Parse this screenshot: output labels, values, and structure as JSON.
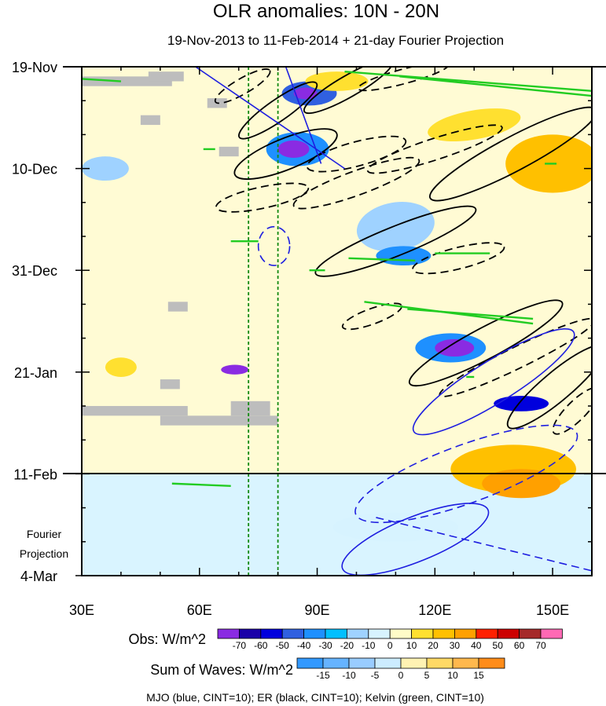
{
  "chart_data": {
    "type": "heatmap",
    "title": "OLR anomalies: 10N - 20N",
    "subtitle": "19-Nov-2013 to 11-Feb-2014 + 21-day Fourier Projection",
    "x_axis": {
      "range": [
        30,
        160
      ],
      "ticks": [
        30,
        60,
        90,
        120,
        150
      ],
      "tick_labels": [
        "30E",
        "60E",
        "90E",
        "120E",
        "150E"
      ]
    },
    "y_axis": {
      "tick_labels": [
        "19-Nov",
        "10-Dec",
        "31-Dec",
        "21-Jan",
        "11-Feb",
        "4-Mar"
      ],
      "day_offsets": [
        0,
        21,
        42,
        63,
        84,
        105
      ],
      "range_days": [
        0,
        105
      ],
      "projection_label_line1": "Fourier",
      "projection_label_line2": "Projection",
      "observation_end_label": "11-Feb"
    },
    "reference_longitudes": [
      72.5,
      80
    ],
    "obs_colorbar": {
      "title": "Obs: W/m^2",
      "labels": [
        "-70",
        "-60",
        "-50",
        "-40",
        "-30",
        "-20",
        "-10",
        "0",
        "10",
        "20",
        "30",
        "40",
        "50",
        "60",
        "70"
      ],
      "colors": [
        "#8a2be2",
        "#1a00a8",
        "#0000dd",
        "#3060e0",
        "#1e90ff",
        "#00bfff",
        "#9fd2ff",
        "#d7f3ff",
        "#fffcc8",
        "#ffe030",
        "#ffc000",
        "#ffa000",
        "#ff2000",
        "#cc0000",
        "#a52a2a",
        "#ff69b4"
      ]
    },
    "waves_colorbar": {
      "title": "Sum of Waves: W/m^2",
      "labels": [
        "-15",
        "-10",
        "-5",
        "0",
        "5",
        "10",
        "15"
      ],
      "colors": [
        "#3399ff",
        "#66b3ff",
        "#99ccff",
        "#ccecff",
        "#fff2b3",
        "#ffd966",
        "#ffb84d",
        "#ff8c1a"
      ]
    },
    "footnote": "MJO (blue, CINT=10); ER (black, CINT=10); Kelvin (green, CINT=10)",
    "contour_colors": {
      "mjo": "#1e1ee0",
      "er": "#000000",
      "kelvin": "#22cc22"
    },
    "anomaly_blobs": [
      {
        "lon": 88,
        "day": 5.5,
        "rx": 7,
        "ry": 2.5,
        "rot": 0,
        "color": "#3060e0"
      },
      {
        "lon": 87,
        "day": 5.5,
        "rx": 3,
        "ry": 1.2,
        "rot": 0,
        "color": "#8a2be2"
      },
      {
        "lon": 85,
        "day": 17,
        "rx": 8,
        "ry": 3.5,
        "rot": 0,
        "color": "#1e90ff"
      },
      {
        "lon": 84,
        "day": 17,
        "rx": 4,
        "ry": 1.8,
        "rot": 0,
        "color": "#8a2be2"
      },
      {
        "lon": 110,
        "day": 33,
        "rx": 10,
        "ry": 5,
        "rot": -10,
        "color": "#9fd2ff"
      },
      {
        "lon": 112,
        "day": 39,
        "rx": 7,
        "ry": 2,
        "rot": 0,
        "color": "#1e90ff"
      },
      {
        "lon": 124,
        "day": 58,
        "rx": 9,
        "ry": 3,
        "rot": 0,
        "color": "#1e90ff"
      },
      {
        "lon": 125,
        "day": 58,
        "rx": 5,
        "ry": 1.8,
        "rot": 0,
        "color": "#8a2be2"
      },
      {
        "lon": 142,
        "day": 69.5,
        "rx": 7,
        "ry": 1.6,
        "rot": 0,
        "color": "#0000dd"
      },
      {
        "lon": 69,
        "day": 62.5,
        "rx": 3.5,
        "ry": 1,
        "rot": 0,
        "color": "#8a2be2"
      },
      {
        "lon": 130,
        "day": 12,
        "rx": 12,
        "ry": 3,
        "rot": -10,
        "color": "#ffe030"
      },
      {
        "lon": 150,
        "day": 20,
        "rx": 12,
        "ry": 6,
        "rot": 0,
        "color": "#ffc000"
      },
      {
        "lon": 140,
        "day": 83,
        "rx": 16,
        "ry": 5,
        "rot": 0,
        "color": "#ffc000"
      },
      {
        "lon": 142,
        "day": 86,
        "rx": 10,
        "ry": 3,
        "rot": 0,
        "color": "#ffa000"
      },
      {
        "lon": 95,
        "day": 3,
        "rx": 8,
        "ry": 2,
        "rot": 0,
        "color": "#ffe030"
      },
      {
        "lon": 40,
        "day": 62,
        "rx": 4,
        "ry": 2,
        "rot": 0,
        "color": "#ffe030"
      },
      {
        "lon": 36,
        "day": 21,
        "rx": 6,
        "ry": 2.5,
        "rot": 0,
        "color": "#9fd2ff"
      },
      {
        "lon": 110,
        "day": 95,
        "rx": 16,
        "ry": 3,
        "rot": 0,
        "color": "#d7f3ff"
      }
    ],
    "missing_boxes": [
      {
        "lon0": 30,
        "lon1": 53,
        "day0": 2,
        "day1": 4
      },
      {
        "lon0": 47,
        "lon1": 56,
        "day0": 1,
        "day1": 3
      },
      {
        "lon0": 62,
        "lon1": 67,
        "day0": 6.5,
        "day1": 8.5
      },
      {
        "lon0": 45,
        "lon1": 50,
        "day0": 10,
        "day1": 12
      },
      {
        "lon0": 65,
        "lon1": 70,
        "day0": 16.5,
        "day1": 18.5
      },
      {
        "lon0": 52,
        "lon1": 57,
        "day0": 48.5,
        "day1": 50.5
      },
      {
        "lon0": 50,
        "lon1": 55,
        "day0": 64.5,
        "day1": 66.5
      },
      {
        "lon0": 30,
        "lon1": 57,
        "day0": 70,
        "day1": 72
      },
      {
        "lon0": 50,
        "lon1": 80,
        "day0": 72,
        "day1": 74
      },
      {
        "lon0": 68,
        "lon1": 78,
        "day0": 69,
        "day1": 72
      }
    ],
    "er_contours": [
      {
        "lon": 80,
        "day": 9,
        "rx": 12,
        "ry": 2.2,
        "rot": -35,
        "dash": false
      },
      {
        "lon": 82,
        "day": 18,
        "rx": 14,
        "ry": 3.2,
        "rot": -22,
        "dash": false
      },
      {
        "lon": 98,
        "day": 4,
        "rx": 13,
        "ry": 2.2,
        "rot": -30,
        "dash": false
      },
      {
        "lon": 100,
        "day": 18,
        "rx": 13,
        "ry": 2.5,
        "rot": -15,
        "dash": true
      },
      {
        "lon": 100,
        "day": 24,
        "rx": 17,
        "ry": 2.5,
        "rot": -20,
        "dash": true
      },
      {
        "lon": 120,
        "day": 17,
        "rx": 18,
        "ry": 2.2,
        "rot": -18,
        "dash": true
      },
      {
        "lon": 76,
        "day": 27,
        "rx": 12,
        "ry": 2.2,
        "rot": -12,
        "dash": true
      },
      {
        "lon": 110,
        "day": 36,
        "rx": 22,
        "ry": 3,
        "rot": -22,
        "dash": false
      },
      {
        "lon": 140,
        "day": 18,
        "rx": 24,
        "ry": 3.5,
        "rot": -28,
        "dash": false
      },
      {
        "lon": 126,
        "day": 39.5,
        "rx": 12,
        "ry": 2.2,
        "rot": -14,
        "dash": true
      },
      {
        "lon": 133,
        "day": 57,
        "rx": 22,
        "ry": 3.2,
        "rot": -28,
        "dash": false
      },
      {
        "lon": 141,
        "day": 60,
        "rx": 22,
        "ry": 2.2,
        "rot": -26,
        "dash": true
      },
      {
        "lon": 151,
        "day": 66,
        "rx": 16,
        "ry": 3,
        "rot": -40,
        "dash": false
      },
      {
        "lon": 156,
        "day": 71,
        "rx": 8,
        "ry": 2,
        "rot": -45,
        "dash": true
      },
      {
        "lon": 104,
        "day": 51.5,
        "rx": 8,
        "ry": 1.6,
        "rot": -20,
        "dash": true
      },
      {
        "lon": 112,
        "day": 2,
        "rx": 12,
        "ry": 1.5,
        "rot": -15,
        "dash": true
      },
      {
        "lon": 71,
        "day": 4,
        "rx": 8,
        "ry": 1.6,
        "rot": -30,
        "dash": true
      }
    ],
    "mjo_contours": [
      {
        "lon": 135,
        "day": 65,
        "rx": 24,
        "ry": 4.3,
        "rot": -32,
        "dash": false
      },
      {
        "lon": 128,
        "day": 84,
        "rx": 30,
        "ry": 6,
        "rot": -20,
        "dash": true
      },
      {
        "lon": 115,
        "day": 97.5,
        "rx": 20,
        "ry": 4.6,
        "rot": -22,
        "dash": false
      },
      {
        "lon": 79,
        "day": 37,
        "rx": 4,
        "ry": 4,
        "rot": 0,
        "dash": true
      }
    ],
    "mjo_lines": [
      {
        "lon0": 59,
        "day0": 0,
        "lon1": 97,
        "day1": 21,
        "dash": false
      },
      {
        "lon0": 82,
        "day0": 0,
        "lon1": 91,
        "day1": 20,
        "dash": false
      },
      {
        "lon0": 105,
        "day0": 93,
        "lon1": 160,
        "day1": 104,
        "dash": true
      }
    ],
    "kelvin_lines": [
      {
        "lon0": 30,
        "day0": 2.5,
        "lon1": 40,
        "day1": 3,
        "dash": false
      },
      {
        "lon0": 97,
        "day0": 1,
        "lon1": 160,
        "day1": 5,
        "dash": false
      },
      {
        "lon0": 111,
        "day0": 2,
        "lon1": 160,
        "day1": 6,
        "dash": false
      },
      {
        "lon0": 102,
        "day0": 48.5,
        "lon1": 145,
        "day1": 53,
        "dash": false
      },
      {
        "lon0": 113,
        "day0": 50,
        "lon1": 145,
        "day1": 52,
        "dash": false
      },
      {
        "lon0": 68,
        "day0": 36,
        "lon1": 75,
        "day1": 36,
        "dash": false
      },
      {
        "lon0": 98,
        "day0": 39.5,
        "lon1": 115,
        "day1": 40,
        "dash": false
      },
      {
        "lon0": 120,
        "day0": 38.5,
        "lon1": 134,
        "day1": 38.5,
        "dash": false
      },
      {
        "lon0": 53,
        "day0": 86,
        "lon1": 68,
        "day1": 86.5,
        "dash": false
      },
      {
        "lon0": 61,
        "day0": 17,
        "lon1": 64,
        "day1": 17,
        "dash": false
      },
      {
        "lon0": 148,
        "day0": 20,
        "lon1": 151,
        "day1": 20,
        "dash": false
      },
      {
        "lon0": 128,
        "day0": 64,
        "lon1": 130,
        "day1": 64,
        "dash": false
      },
      {
        "lon0": 88,
        "day0": 42,
        "lon1": 92,
        "day1": 42,
        "dash": false
      }
    ]
  }
}
